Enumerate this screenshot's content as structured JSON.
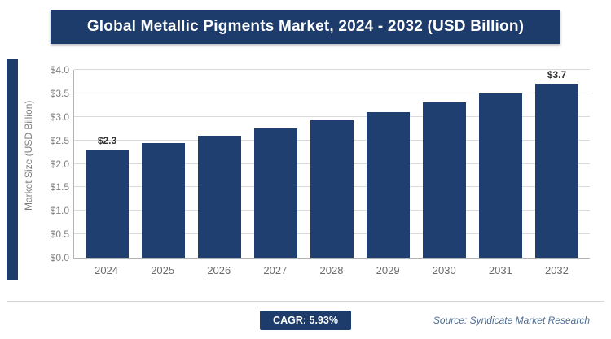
{
  "header": {
    "title": "Global Metallic Pigments Market, 2024 - 2032 (USD Billion)"
  },
  "chart_data": {
    "type": "bar",
    "title": "Global Metallic Pigments Market, 2024 - 2032 (USD Billion)",
    "xlabel": "",
    "ylabel": "Market Size (USD Billion)",
    "ylim": [
      0,
      4.0
    ],
    "ytick_step": 0.5,
    "ytick_prefix": "$",
    "grid": true,
    "legend": false,
    "bar_color": "#1e3f70",
    "categories": [
      "2024",
      "2025",
      "2026",
      "2027",
      "2028",
      "2029",
      "2030",
      "2031",
      "2032"
    ],
    "values": [
      2.3,
      2.45,
      2.6,
      2.75,
      2.93,
      3.1,
      3.3,
      3.5,
      3.7
    ],
    "bar_labels": [
      "$2.3",
      "",
      "",
      "",
      "",
      "",
      "",
      "",
      "$3.7"
    ]
  },
  "footer": {
    "cagr_label": "CAGR: 5.93%",
    "source": "Source: Syndicate Market Research"
  },
  "colors": {
    "navy": "#1d3c6b",
    "bar": "#1e3f70",
    "axis_text": "#808080"
  }
}
